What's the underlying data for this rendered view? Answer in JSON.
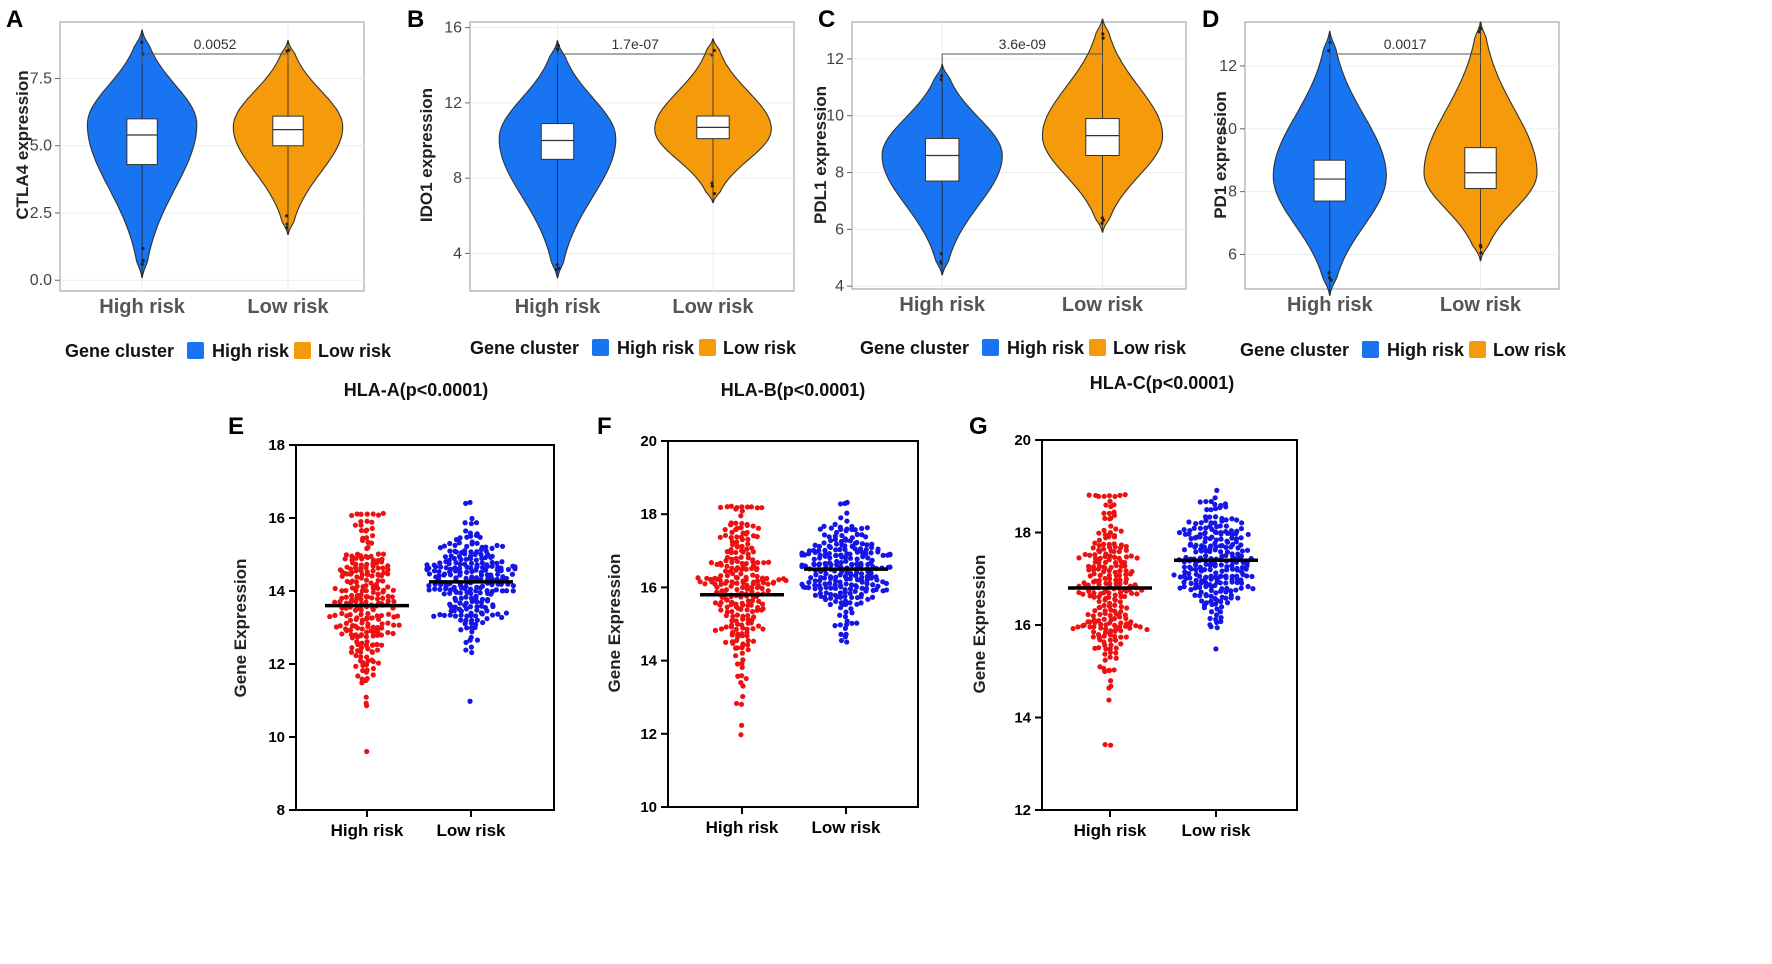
{
  "colors": {
    "high_risk_violin": "#1874f0",
    "low_risk_violin": "#f59a0b",
    "high_risk_dot": "#ee1111",
    "low_risk_dot": "#1515e6"
  },
  "chart_data": [
    {
      "panel": "A",
      "type": "violin",
      "ylabel": "CTLA4 expression",
      "categories": [
        "High risk",
        "Low risk"
      ],
      "ylim": [
        -0.4,
        9.6
      ],
      "yticks": [
        "0.0",
        "2.5",
        "5.0",
        "7.5"
      ],
      "ytick_values": [
        0,
        2.5,
        5,
        7.5
      ],
      "pvalue": "0.0052",
      "groups": [
        {
          "name": "High risk",
          "min": 0.1,
          "max": 9.3,
          "mode": 5.8,
          "q1": 4.3,
          "median": 5.4,
          "q3": 6.0
        },
        {
          "name": "Low risk",
          "min": 1.7,
          "max": 8.9,
          "mode": 5.7,
          "q1": 5.0,
          "median": 5.6,
          "q3": 6.1
        }
      ],
      "legend": {
        "title": "Gene cluster",
        "items": [
          "High risk",
          "Low risk"
        ]
      }
    },
    {
      "panel": "B",
      "type": "violin",
      "ylabel": "IDO1 expression",
      "categories": [
        "High risk",
        "Low risk"
      ],
      "ylim": [
        2.0,
        16.3
      ],
      "yticks": [
        "4",
        "8",
        "12",
        "16"
      ],
      "ytick_values": [
        4,
        8,
        12,
        16
      ],
      "pvalue": "1.7e-07",
      "groups": [
        {
          "name": "High risk",
          "min": 2.7,
          "max": 15.3,
          "mode": 10.1,
          "q1": 9.0,
          "median": 10.0,
          "q3": 10.9
        },
        {
          "name": "Low risk",
          "min": 6.7,
          "max": 15.4,
          "mode": 10.6,
          "q1": 10.1,
          "median": 10.7,
          "q3": 11.3
        }
      ],
      "legend": {
        "title": "Gene cluster",
        "items": [
          "High risk",
          "Low risk"
        ]
      }
    },
    {
      "panel": "C",
      "type": "violin",
      "ylabel": "PDL1 expression",
      "categories": [
        "High risk",
        "Low risk"
      ],
      "ylim": [
        3.9,
        13.3
      ],
      "yticks": [
        "4",
        "6",
        "8",
        "10",
        "12"
      ],
      "ytick_values": [
        4,
        6,
        8,
        10,
        12
      ],
      "pvalue": "3.6e-09",
      "groups": [
        {
          "name": "High risk",
          "min": 4.4,
          "max": 11.8,
          "mode": 8.6,
          "q1": 7.7,
          "median": 8.6,
          "q3": 9.2
        },
        {
          "name": "Low risk",
          "min": 5.9,
          "max": 13.4,
          "mode": 9.3,
          "q1": 8.6,
          "median": 9.3,
          "q3": 9.9
        }
      ],
      "legend": {
        "title": "Gene cluster",
        "items": [
          "High risk",
          "Low risk"
        ]
      }
    },
    {
      "panel": "D",
      "type": "violin",
      "ylabel": "PD1 expression",
      "categories": [
        "High risk",
        "Low risk"
      ],
      "ylim": [
        4.9,
        13.4
      ],
      "yticks": [
        "6",
        "8",
        "10",
        "12"
      ],
      "ytick_values": [
        6,
        8,
        10,
        12
      ],
      "pvalue": "0.0017",
      "groups": [
        {
          "name": "High risk",
          "min": 4.7,
          "max": 13.1,
          "mode": 8.5,
          "q1": 7.7,
          "median": 8.4,
          "q3": 9.0
        },
        {
          "name": "Low risk",
          "min": 5.8,
          "max": 13.4,
          "mode": 8.6,
          "q1": 8.1,
          "median": 8.6,
          "q3": 9.4
        }
      ],
      "legend": {
        "title": "Gene cluster",
        "items": [
          "High risk",
          "Low risk"
        ]
      }
    },
    {
      "panel": "E",
      "type": "scatter",
      "title": "HLA-A(p<0.0001)",
      "ylabel": "Gene Expression",
      "categories": [
        "High risk",
        "Low risk"
      ],
      "ylim": [
        8,
        18
      ],
      "yticks": [
        "8",
        "10",
        "12",
        "14",
        "16",
        "18"
      ],
      "ytick_values": [
        8,
        10,
        12,
        14,
        16,
        18
      ],
      "groups": [
        {
          "name": "High risk",
          "mean": 13.6,
          "min": 9.6,
          "max": 16.1,
          "sd": 1.1,
          "n": 250
        },
        {
          "name": "Low risk",
          "mean": 14.25,
          "min": 11.0,
          "max": 16.4,
          "sd": 0.75,
          "n": 250
        }
      ]
    },
    {
      "panel": "F",
      "type": "scatter",
      "title": "HLA-B(p<0.0001)",
      "ylabel": "Gene Expression",
      "categories": [
        "High risk",
        "Low risk"
      ],
      "ylim": [
        10,
        20
      ],
      "yticks": [
        "10",
        "12",
        "14",
        "16",
        "18",
        "20"
      ],
      "ytick_values": [
        10,
        12,
        14,
        16,
        18,
        20
      ],
      "groups": [
        {
          "name": "High risk",
          "mean": 15.8,
          "min": 12.0,
          "max": 18.2,
          "sd": 1.1,
          "n": 250
        },
        {
          "name": "Low risk",
          "mean": 16.5,
          "min": 14.5,
          "max": 18.3,
          "sd": 0.7,
          "n": 250
        }
      ]
    },
    {
      "panel": "G",
      "type": "scatter",
      "title": "HLA-C(p<0.0001)",
      "ylabel": "Gene Expression",
      "categories": [
        "High risk",
        "Low risk"
      ],
      "ylim": [
        12,
        20
      ],
      "yticks": [
        "12",
        "14",
        "16",
        "18",
        "20"
      ],
      "ytick_values": [
        12,
        14,
        16,
        18,
        20
      ],
      "groups": [
        {
          "name": "High risk",
          "mean": 16.8,
          "min": 13.4,
          "max": 18.8,
          "sd": 1.0,
          "n": 250
        },
        {
          "name": "Low risk",
          "mean": 17.4,
          "min": 15.5,
          "max": 18.9,
          "sd": 0.6,
          "n": 250
        }
      ]
    }
  ]
}
